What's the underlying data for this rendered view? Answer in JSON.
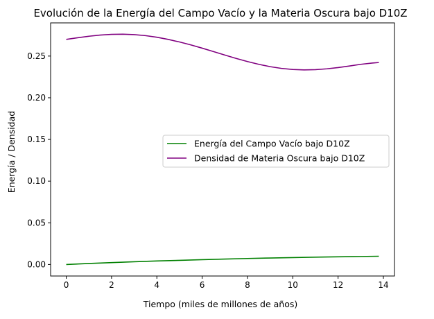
{
  "chart_data": {
    "type": "line",
    "title": "Evolución de la Energía del Campo Vacío y la Materia Oscura bajo D10Z",
    "xlabel": "Tiempo (miles de millones de años)",
    "ylabel": "Energía / Densidad",
    "xlim": [
      -0.69,
      14.49
    ],
    "ylim": [
      -0.0138,
      0.2898
    ],
    "xticks": [
      0,
      2,
      4,
      6,
      8,
      10,
      12,
      14
    ],
    "yticks": [
      0.0,
      0.05,
      0.1,
      0.15,
      0.2,
      0.25
    ],
    "xtick_labels": [
      "0",
      "2",
      "4",
      "6",
      "8",
      "10",
      "12",
      "14"
    ],
    "ytick_labels": [
      "0.00",
      "0.05",
      "0.10",
      "0.15",
      "0.20",
      "0.25"
    ],
    "grid": false,
    "legend_position": "center-right",
    "series": [
      {
        "name": "Energía del Campo Vacío bajo D10Z",
        "color": "#008000",
        "x": [
          0,
          1,
          2,
          3,
          4,
          5,
          6,
          7,
          8,
          9,
          10,
          11,
          12,
          13,
          13.8
        ],
        "y": [
          0.0,
          0.0012,
          0.0023,
          0.0033,
          0.0042,
          0.005,
          0.0058,
          0.0065,
          0.0072,
          0.0078,
          0.0083,
          0.0088,
          0.0092,
          0.0096,
          0.0099
        ]
      },
      {
        "name": "Densidad de Materia Oscura bajo D10Z",
        "color": "#800080",
        "x": [
          0,
          0.5,
          1,
          1.5,
          2,
          2.5,
          3,
          3.5,
          4,
          4.5,
          5,
          5.5,
          6,
          6.5,
          7,
          7.5,
          8,
          8.5,
          9,
          9.5,
          10,
          10.5,
          11,
          11.5,
          12,
          12.5,
          13,
          13.5,
          13.8
        ],
        "y": [
          0.27,
          0.272,
          0.2738,
          0.2752,
          0.276,
          0.2762,
          0.2757,
          0.2745,
          0.2726,
          0.27,
          0.2669,
          0.2634,
          0.2595,
          0.2554,
          0.2512,
          0.2472,
          0.2434,
          0.2401,
          0.2373,
          0.2352,
          0.2339,
          0.2334,
          0.2337,
          0.2347,
          0.2362,
          0.2381,
          0.2401,
          0.2416,
          0.2423
        ]
      }
    ]
  }
}
